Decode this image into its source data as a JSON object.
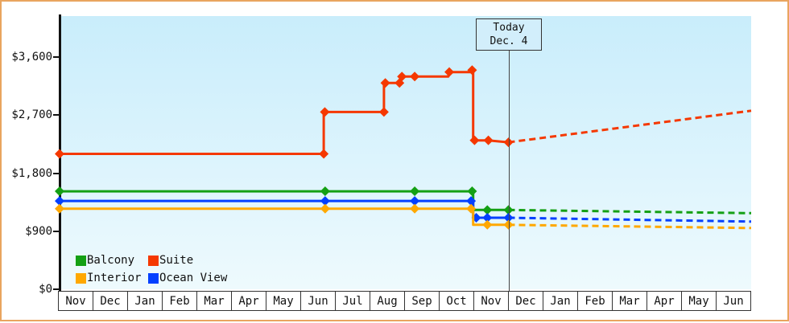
{
  "window": {
    "border_color": "#e9a55f"
  },
  "today_marker": {
    "line1": "Today",
    "line2": "Dec. 4"
  },
  "legend": {
    "items": [
      {
        "label": "Balcony",
        "color": "#14a014"
      },
      {
        "label": "Suite",
        "color": "#f53800"
      },
      {
        "label": "Interior",
        "color": "#ffa800"
      },
      {
        "label": "Ocean View",
        "color": "#0340ff"
      }
    ]
  },
  "chart_data": {
    "type": "line",
    "title": "",
    "xlabel": "",
    "ylabel": "",
    "x_tick_labels": [
      "Nov",
      "Dec",
      "Jan",
      "Feb",
      "Mar",
      "Apr",
      "May",
      "Jun",
      "Jul",
      "Aug",
      "Sep",
      "Oct",
      "Nov",
      "Dec",
      "Jan",
      "Feb",
      "Mar",
      "Apr",
      "May",
      "Jun"
    ],
    "y_ticks": [
      {
        "label": "$0",
        "value": 0
      },
      {
        "label": "$900",
        "value": 900
      },
      {
        "label": "$1,800",
        "value": 1800
      },
      {
        "label": "$2,700",
        "value": 2700
      },
      {
        "label": "$3,600",
        "value": 3600
      }
    ],
    "ylim": [
      0,
      4200
    ],
    "xlim_month_index": [
      0,
      20
    ],
    "grid": false,
    "legend_position": "bottom-left-inside",
    "today_x_month_index": 13,
    "series": [
      {
        "name": "Balcony",
        "color": "#14a014",
        "solid": [
          [
            0,
            1520
          ],
          [
            11.96,
            1520
          ],
          [
            11.96,
            1230
          ],
          [
            12.98,
            1230
          ]
        ],
        "markers": [
          [
            0,
            1520
          ],
          [
            7.68,
            1520
          ],
          [
            10.27,
            1520
          ],
          [
            11.93,
            1520
          ],
          [
            12.37,
            1230
          ],
          [
            12.98,
            1230
          ]
        ],
        "dashed": [
          [
            12.98,
            1230
          ],
          [
            20,
            1180
          ]
        ]
      },
      {
        "name": "Ocean View",
        "color": "#0340ff",
        "solid": [
          [
            0,
            1370
          ],
          [
            11.96,
            1370
          ],
          [
            11.96,
            1110
          ],
          [
            12.98,
            1110
          ]
        ],
        "markers": [
          [
            0,
            1370
          ],
          [
            7.68,
            1370
          ],
          [
            10.27,
            1370
          ],
          [
            11.9,
            1370
          ],
          [
            12.05,
            1110
          ],
          [
            12.37,
            1110
          ],
          [
            12.98,
            1110
          ]
        ],
        "dashed": [
          [
            12.98,
            1110
          ],
          [
            20,
            1050
          ]
        ]
      },
      {
        "name": "Interior",
        "color": "#ffa800",
        "solid": [
          [
            0,
            1250
          ],
          [
            11.96,
            1250
          ],
          [
            11.96,
            1000
          ],
          [
            12.98,
            1000
          ]
        ],
        "markers": [
          [
            0,
            1250
          ],
          [
            7.68,
            1250
          ],
          [
            10.27,
            1250
          ],
          [
            11.9,
            1250
          ],
          [
            12.37,
            1000
          ],
          [
            12.98,
            1000
          ]
        ],
        "dashed": [
          [
            12.98,
            1000
          ],
          [
            20,
            950
          ]
        ]
      },
      {
        "name": "Suite",
        "color": "#f53800",
        "solid": [
          [
            0,
            2100
          ],
          [
            7.64,
            2100
          ],
          [
            7.64,
            2750
          ],
          [
            9.38,
            2750
          ],
          [
            9.38,
            3200
          ],
          [
            9.85,
            3200
          ],
          [
            9.85,
            3300
          ],
          [
            11.24,
            3300
          ],
          [
            11.27,
            3370
          ],
          [
            11.9,
            3370
          ],
          [
            11.93,
            3400
          ],
          [
            11.96,
            3400
          ],
          [
            11.96,
            2310
          ],
          [
            12.4,
            2310
          ],
          [
            12.98,
            2280
          ]
        ],
        "markers": [
          [
            0,
            2100
          ],
          [
            7.64,
            2100
          ],
          [
            7.67,
            2750
          ],
          [
            9.38,
            2750
          ],
          [
            9.42,
            3200
          ],
          [
            9.83,
            3200
          ],
          [
            9.9,
            3300
          ],
          [
            10.27,
            3300
          ],
          [
            11.27,
            3370
          ],
          [
            11.93,
            3400
          ],
          [
            12.0,
            2310
          ],
          [
            12.4,
            2310
          ],
          [
            12.98,
            2280
          ]
        ],
        "dashed": [
          [
            12.98,
            2280
          ],
          [
            20,
            2770
          ]
        ]
      }
    ]
  }
}
